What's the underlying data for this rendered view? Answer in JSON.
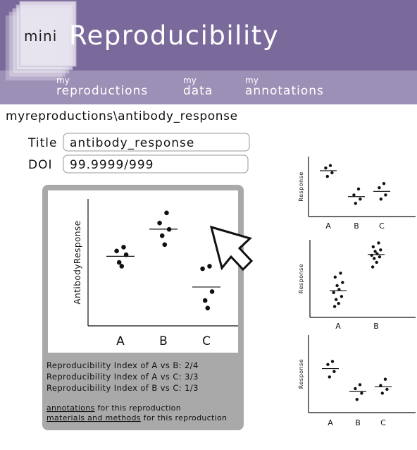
{
  "header": {
    "logo_small": "mini",
    "logo": "Reproducibility"
  },
  "nav": [
    {
      "prefix": "my",
      "label": "reproductions"
    },
    {
      "prefix": "my",
      "label": "data"
    },
    {
      "prefix": "my",
      "label": "annotations"
    }
  ],
  "breadcrumb": "myreproductions\\antibody_response",
  "form": {
    "title_label": "Title",
    "title_value": "antibody_response",
    "doi_label": "DOI",
    "doi_value": "99.9999/999"
  },
  "chart_data": [
    {
      "type": "dot",
      "y_label": "AntibodyResponse",
      "categories": [
        "A",
        "B",
        "C"
      ],
      "ylim": [
        0,
        100
      ],
      "values": [
        [
          62,
          59,
          56,
          50,
          47
        ],
        [
          89,
          81,
          76,
          71,
          64
        ],
        [
          47,
          45,
          27,
          20,
          14
        ]
      ]
    },
    {
      "type": "dot",
      "y_label": "Response",
      "categories": [
        "A",
        "B",
        "C"
      ],
      "ylim": [
        0,
        100
      ],
      "values": [
        [
          85,
          81,
          73,
          67
        ],
        [
          46,
          36,
          29,
          22
        ],
        [
          55,
          48,
          36,
          29
        ]
      ]
    },
    {
      "type": "dot",
      "y_label": "Response",
      "categories": [
        "A",
        "B"
      ],
      "ylim": [
        0,
        100
      ],
      "values": [
        [
          57,
          52,
          45,
          41,
          36,
          32,
          27,
          23,
          18,
          14
        ],
        [
          96,
          91,
          87,
          85,
          82,
          80,
          78,
          76,
          71,
          65
        ]
      ]
    },
    {
      "type": "dot",
      "y_label": "Response",
      "categories": [
        "A",
        "B",
        "C"
      ],
      "ylim": [
        0,
        100
      ],
      "values": [
        [
          66,
          62,
          53,
          46
        ],
        [
          36,
          31,
          25,
          17
        ],
        [
          43,
          35,
          30,
          25
        ]
      ]
    }
  ],
  "results": [
    "Reproducibility Index of A vs B: 2/4",
    "Reproducibility Index of A vs C: 3/3",
    "Reproducibility Index of B vs C: 1/3"
  ],
  "links": [
    {
      "link": "annotations",
      "text": " for this reproduction"
    },
    {
      "link": "materials and methods",
      "text": " for this reproduction"
    }
  ]
}
